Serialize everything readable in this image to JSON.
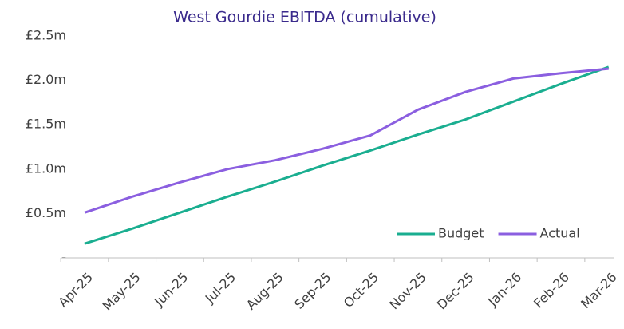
{
  "chart_data": {
    "type": "line",
    "title": "West Gourdie EBITDA (cumulative)",
    "categories": [
      "Apr-25",
      "May-25",
      "Jun-25",
      "Jul-25",
      "Aug-25",
      "Sep-25",
      "Oct-25",
      "Nov-25",
      "Dec-25",
      "Jan-26",
      "Feb-26",
      "Mar-26"
    ],
    "series": [
      {
        "name": "Budget",
        "color": "#1aae90",
        "values": [
          0.16,
          0.33,
          0.51,
          0.69,
          0.86,
          1.04,
          1.21,
          1.39,
          1.56,
          1.76,
          1.96,
          2.15
        ]
      },
      {
        "name": "Actual",
        "color": "#8b5fe0",
        "values": [
          0.51,
          0.69,
          0.85,
          1.0,
          1.1,
          1.23,
          1.38,
          1.67,
          1.87,
          2.02,
          2.08,
          2.13
        ]
      }
    ],
    "ylim": [
      0,
      2.5
    ],
    "yticks": [
      {
        "value": 0,
        "label": "-"
      },
      {
        "value": 0.5,
        "label": "£0.5m"
      },
      {
        "value": 1,
        "label": "£1.0m"
      },
      {
        "value": 1.5,
        "label": "£1.5m"
      },
      {
        "value": 2,
        "label": "£2.0m"
      },
      {
        "value": 2.5,
        "label": "£2.5m"
      }
    ],
    "grid": false,
    "legend": "lower right"
  }
}
